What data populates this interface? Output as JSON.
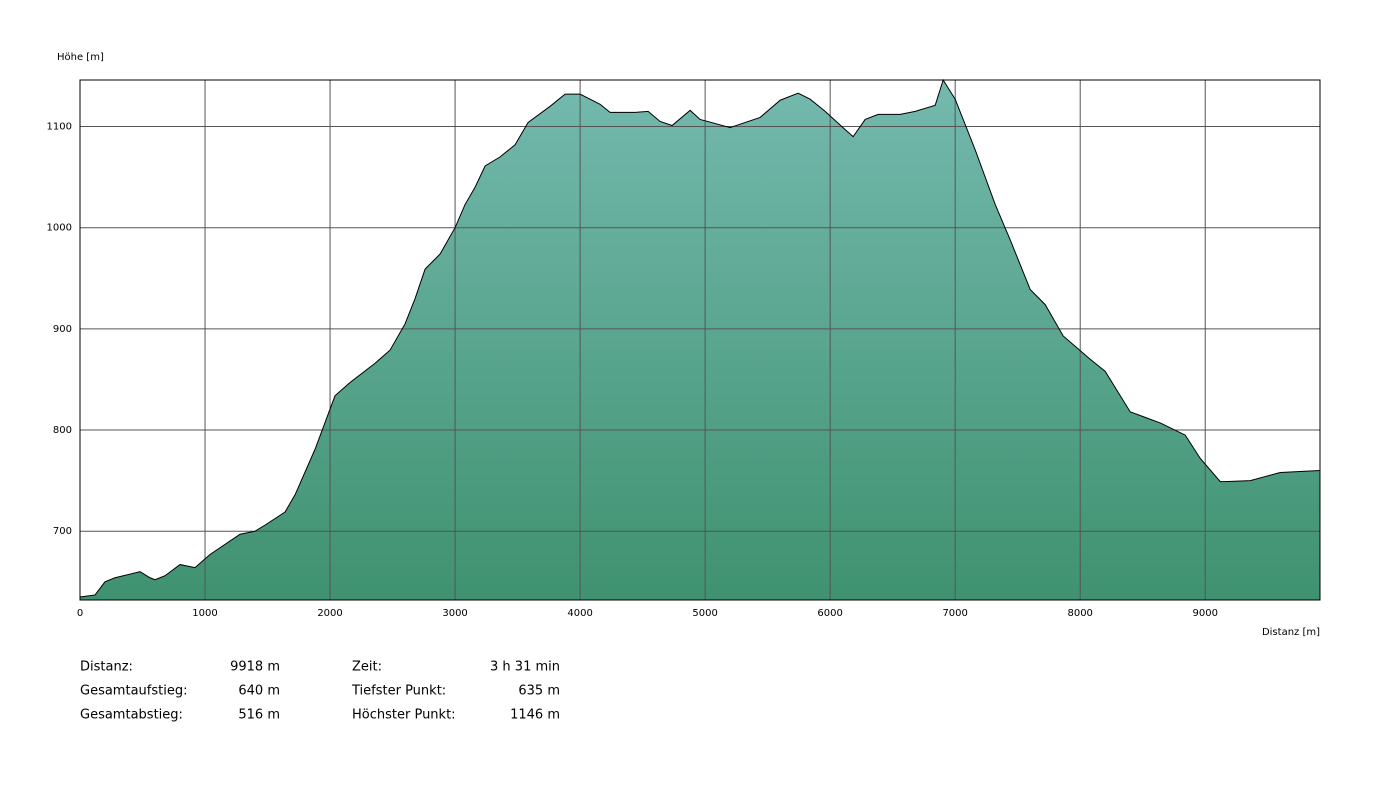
{
  "chart_data": {
    "type": "area",
    "ylabel": "Höhe [m]",
    "xlabel": "Distanz [m]",
    "color": "#3f9270",
    "color_top": "#74b9ae",
    "line_color": "#000000",
    "x": [
      0,
      120,
      200,
      280,
      480,
      560,
      600,
      680,
      800,
      920,
      1040,
      1280,
      1400,
      1480,
      1640,
      1720,
      1880,
      2040,
      2160,
      2360,
      2480,
      2600,
      2680,
      2760,
      2880,
      3000,
      3080,
      3160,
      3240,
      3360,
      3480,
      3584,
      3760,
      3880,
      4000,
      4160,
      4240,
      4440,
      4544,
      4640,
      4736,
      4880,
      4960,
      5200,
      5440,
      5600,
      5744,
      5840,
      5960,
      6120,
      6184,
      6280,
      6384,
      6560,
      6680,
      6840,
      6904,
      7000,
      7160,
      7320,
      7440,
      7600,
      7720,
      7864,
      8080,
      8200,
      8400,
      8640,
      8840,
      8960,
      9120,
      9160,
      9360,
      9600,
      9918
    ],
    "values": [
      635,
      637,
      650,
      654,
      660,
      654,
      652,
      656,
      667,
      664,
      677,
      697,
      700,
      706,
      719,
      736,
      781,
      834,
      847,
      866,
      879,
      905,
      930,
      959,
      974,
      1000,
      1023,
      1040,
      1061,
      1070,
      1082,
      1104,
      1120,
      1132,
      1132,
      1122,
      1114,
      1114,
      1115,
      1105,
      1101,
      1116,
      1107,
      1099,
      1109,
      1126,
      1133,
      1127,
      1115,
      1097,
      1090,
      1107,
      1112,
      1112,
      1115,
      1121,
      1146,
      1127,
      1077,
      1023,
      988,
      939,
      924,
      893,
      870,
      858,
      818,
      807,
      795,
      772,
      749,
      749,
      750,
      758,
      760
    ],
    "xlim": [
      0,
      9918
    ],
    "ylim": [
      632,
      1146
    ],
    "xticks": [
      0,
      1000,
      2000,
      3000,
      4000,
      5000,
      6000,
      7000,
      8000,
      9000
    ],
    "yticks": [
      700,
      800,
      900,
      1000,
      1100
    ],
    "grid": true
  },
  "stats": [
    [
      {
        "label": "Distanz:",
        "value": "9918 m"
      },
      {
        "label": "Zeit:",
        "value": "3 h 31 min"
      }
    ],
    [
      {
        "label": "Gesamtaufstieg:",
        "value": "640 m"
      },
      {
        "label": "Tiefster Punkt:",
        "value": "635 m"
      }
    ],
    [
      {
        "label": "Gesamtabstieg:",
        "value": "516 m"
      },
      {
        "label": "Höchster Punkt:",
        "value": "1146 m"
      }
    ]
  ]
}
